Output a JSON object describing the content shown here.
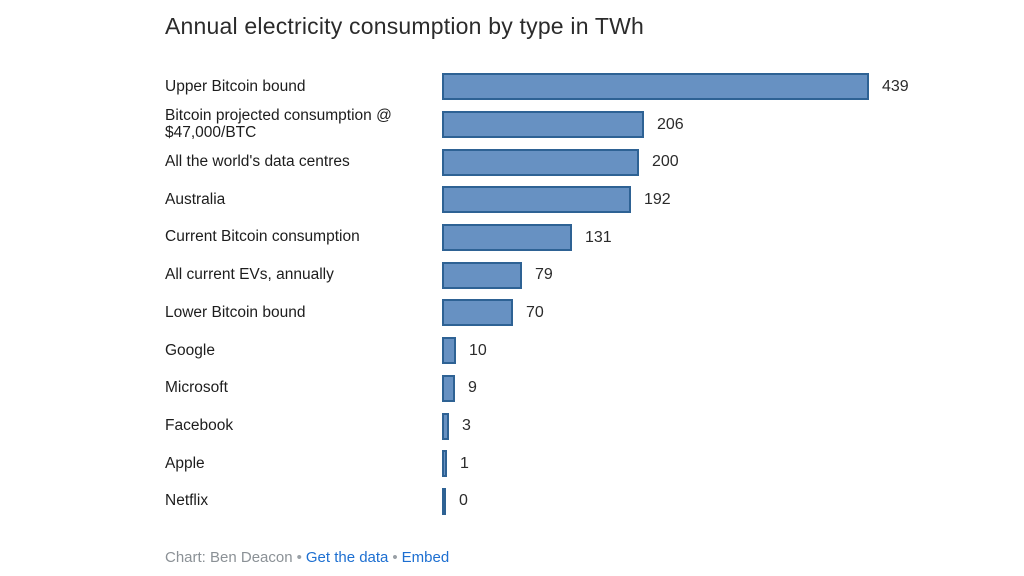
{
  "title": "Annual electricity consumption by type in TWh",
  "chart_data": {
    "type": "bar",
    "orientation": "horizontal",
    "title": "Annual electricity consumption by type in TWh",
    "unit": "TWh",
    "categories": [
      "Upper Bitcoin bound",
      "Bitcoin projected consumption @ $47,000/BTC",
      "All the world's data centres",
      "Australia",
      "Current Bitcoin consumption",
      "All current EVs, annually",
      "Lower Bitcoin bound",
      "Google",
      "Microsoft",
      "Facebook",
      "Apple",
      "Netflix"
    ],
    "values": [
      439,
      206,
      200,
      192,
      131,
      79,
      70,
      10,
      9,
      3,
      1,
      0
    ],
    "xlim": [
      0,
      439
    ],
    "grid": false,
    "value_labels": true,
    "legend": "none",
    "bar_color": "#6791c2",
    "bar_border_color": "#2e6294"
  },
  "footer": {
    "credit": "Chart: Ben Deacon",
    "separator": "•",
    "links": [
      {
        "label": "Get the data"
      },
      {
        "label": "Embed"
      }
    ]
  }
}
